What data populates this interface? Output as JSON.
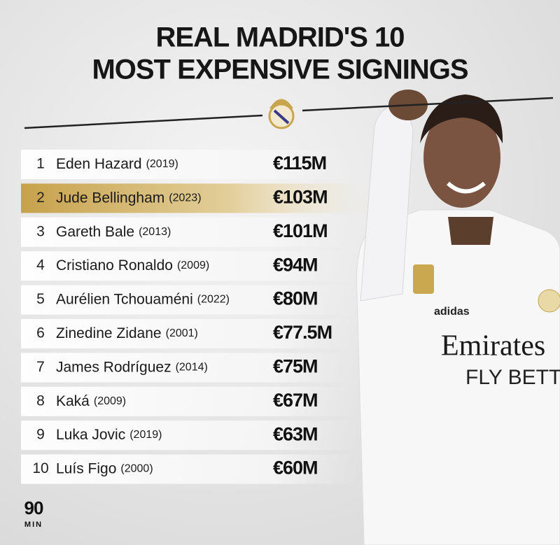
{
  "header": {
    "title_lines": [
      "REAL MADRID'S 10",
      "MOST EXPENSIVE SIGNINGS"
    ]
  },
  "table": {
    "rows": [
      {
        "rank": 1,
        "name": "Eden Hazard",
        "year": "(2019)",
        "fee": "€115M"
      },
      {
        "rank": 2,
        "name": "Jude Bellingham",
        "year": "(2023)",
        "fee": "€103M",
        "highlight": true
      },
      {
        "rank": 3,
        "name": "Gareth Bale",
        "year": "(2013)",
        "fee": "€101M"
      },
      {
        "rank": 4,
        "name": "Cristiano Ronaldo",
        "year": "(2009)",
        "fee": "€94M"
      },
      {
        "rank": 5,
        "name": "Aurélien Tchouaméni",
        "year": "(2022)",
        "fee": "€80M"
      },
      {
        "rank": 6,
        "name": "Zinedine Zidane",
        "year": "(2001)",
        "fee": "€77.5M"
      },
      {
        "rank": 7,
        "name": "James Rodríguez",
        "year": "(2014)",
        "fee": "€75M"
      },
      {
        "rank": 8,
        "name": "Kaká",
        "year": "(2009)",
        "fee": "€67M"
      },
      {
        "rank": 9,
        "name": "Luka Jovic",
        "year": "(2019)",
        "fee": "€63M"
      },
      {
        "rank": 10,
        "name": "Luís Figo",
        "year": "(2000)",
        "fee": "€60M"
      }
    ]
  },
  "logo": {
    "top": "90",
    "bottom": "MIN"
  },
  "shirt": {
    "sponsor": "Emirates",
    "tagline": "FLY BETTER",
    "brand": "adidas"
  }
}
